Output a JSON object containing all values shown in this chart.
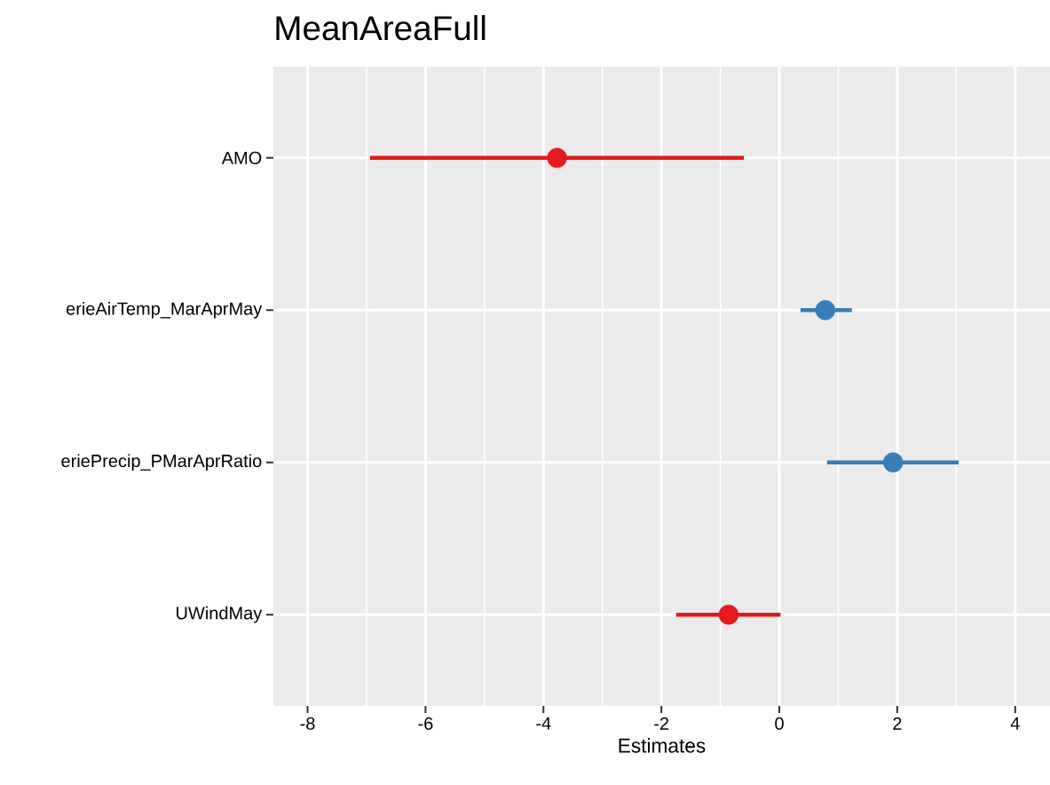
{
  "chart_data": {
    "type": "scatter",
    "orientation": "horizontal",
    "title": "MeanAreaFull",
    "xlabel": "Estimates",
    "categories": [
      "AMO",
      "erieAirTemp_MarAprMay",
      "eriePrecip_PMarAprRatio",
      "UWindMay"
    ],
    "values": [
      -3.77,
      0.78,
      1.93,
      -0.86
    ],
    "errors": [
      [
        -6.94,
        -0.6
      ],
      [
        0.36,
        1.23
      ],
      [
        0.81,
        3.04
      ],
      [
        -1.75,
        0.02
      ]
    ],
    "colors": [
      "#e41a1c",
      "#377eb8",
      "#377eb8",
      "#e41a1c"
    ],
    "xlim": [
      -8.58,
      4.59
    ],
    "xticks": [
      -8,
      -6,
      -4,
      -2,
      0,
      2,
      4
    ],
    "grid": true,
    "marker": "circle"
  }
}
